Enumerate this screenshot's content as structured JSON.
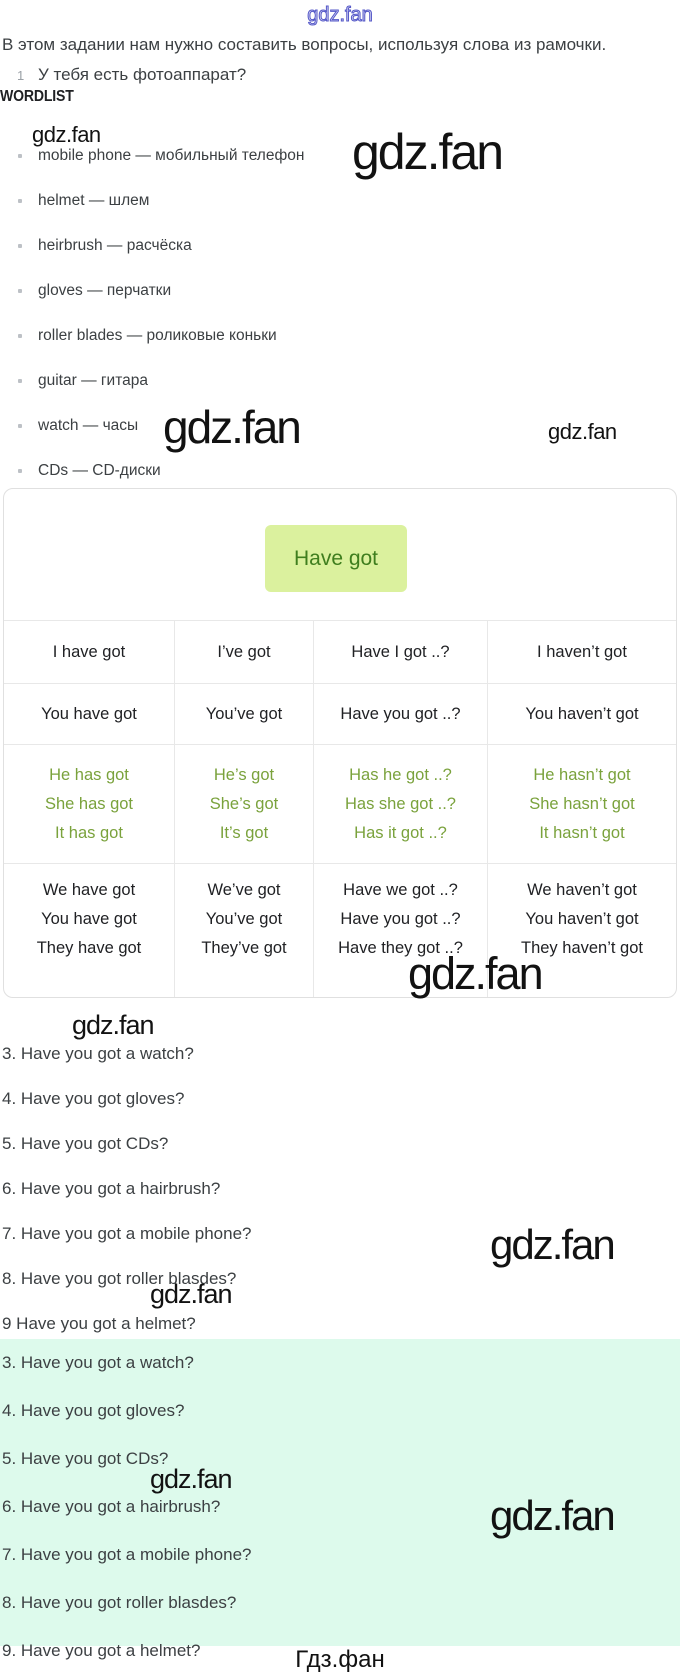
{
  "watermark": {
    "text": "gdz.fan"
  },
  "intro": {
    "text": "В этом задании нам нужно составить вопросы, используя слова из рамочки.",
    "item_number": "1",
    "item_text": "У тебя есть фотоаппарат?"
  },
  "wordlist": {
    "heading": "WORDLIST",
    "separator": "—",
    "items": [
      {
        "term": "mobile phone",
        "translation": "мобильный телефон"
      },
      {
        "term": "helmet",
        "translation": "шлем"
      },
      {
        "term": "heirbrush",
        "translation": "расчёска"
      },
      {
        "term": "gloves",
        "translation": "перчатки"
      },
      {
        "term": "roller blades",
        "translation": "роликовые коньки"
      },
      {
        "term": "guitar",
        "translation": "гитара"
      },
      {
        "term": "watch",
        "translation": "часы"
      },
      {
        "term": "CDs",
        "translation": "CD-диски"
      }
    ]
  },
  "grammar_box": {
    "badge_label": "Have got",
    "table": {
      "rows": [
        {
          "color": "black",
          "cells": [
            [
              "I have got"
            ],
            [
              "I’ve got"
            ],
            [
              "Have I got ..?"
            ],
            [
              "I haven’t got"
            ]
          ]
        },
        {
          "color": "black",
          "cells": [
            [
              "You have got"
            ],
            [
              "You’ve got"
            ],
            [
              "Have you got ..?"
            ],
            [
              "You haven’t got"
            ]
          ]
        },
        {
          "color": "green",
          "cells": [
            [
              "He has got",
              "She has got",
              "It has got"
            ],
            [
              "He’s got",
              "She’s got",
              "It’s got"
            ],
            [
              "Has he got ..?",
              "Has she got ..?",
              "Has it got ..?"
            ],
            [
              "He hasn’t got",
              "She hasn’t got",
              "It hasn’t got"
            ]
          ]
        },
        {
          "color": "black",
          "cells": [
            [
              "We have got",
              "You have got",
              "They have got"
            ],
            [
              "We’ve got",
              "You’ve got",
              "They’ve got"
            ],
            [
              "Have we got ..?",
              "Have you got ..?",
              "Have they got ..?"
            ],
            [
              "We haven’t got",
              "You haven’t got",
              "They haven’t got"
            ]
          ]
        }
      ]
    }
  },
  "questions_plain": [
    "3. Have you got a watch?",
    "4. Have you got gloves?",
    "5. Have you got CDs?",
    "6. Have you got a hairbrush?",
    "7. Have you got a mobile phone?",
    "8. Have you got roller blasdes?",
    "9 Have you got a helmet?"
  ],
  "questions_highlighted": [
    "3. Have you got a watch?",
    "4. Have you got gloves?",
    "5. Have you got CDs?",
    "6. Have you got a hairbrush?",
    "7. Have you got a mobile phone?",
    "8. Have you got roller blasdes?",
    "9. Have you got a helmet?"
  ],
  "footer": {
    "site_name": "Гдз.фан"
  },
  "colors": {
    "green_text": "#7aa23c",
    "badge_bg": "#dbf19e",
    "badge_text": "#3f7e1e",
    "highlight_bg": "#ddfaec",
    "outline_watermark": "#5558c8"
  }
}
